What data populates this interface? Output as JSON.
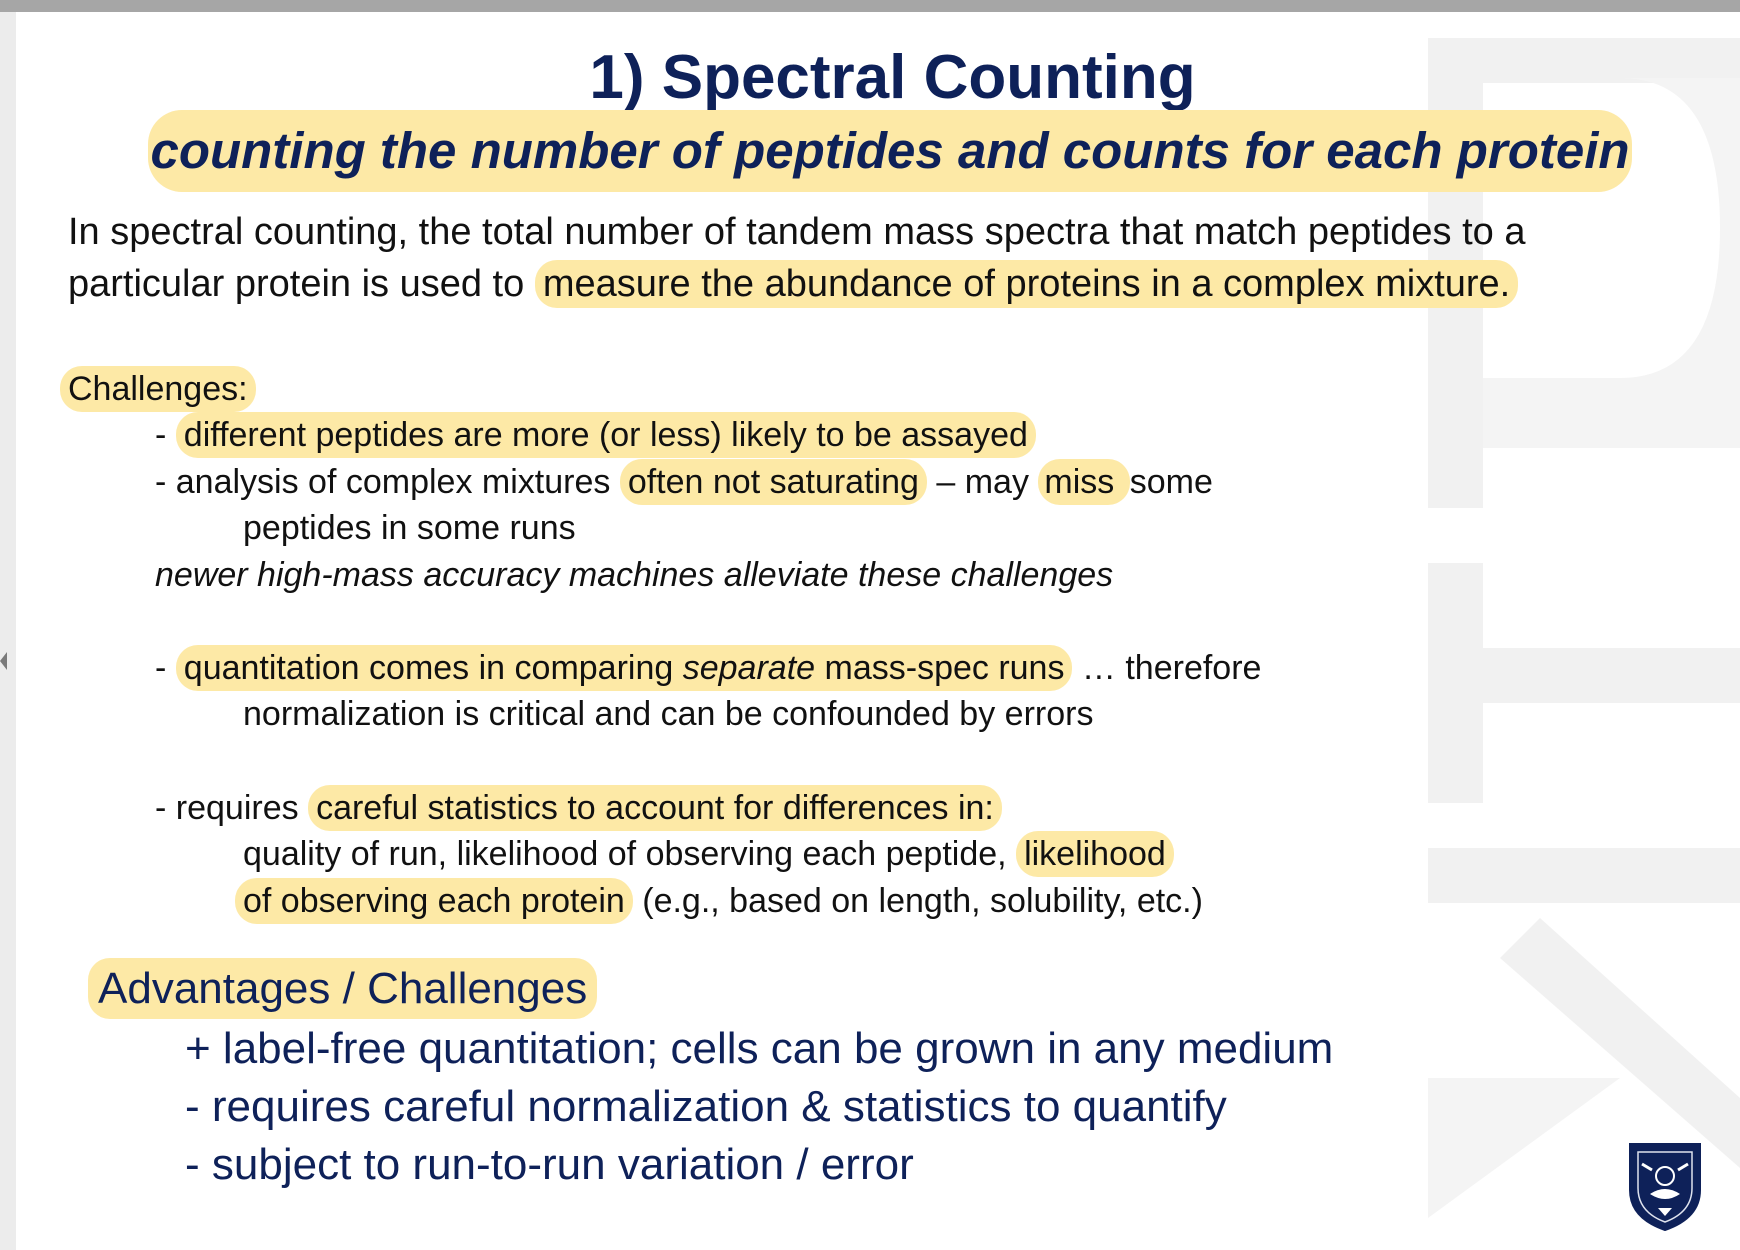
{
  "title": "1) Spectral Counting",
  "subtitle": "counting the number of peptides and counts for each protein",
  "intro": {
    "line1": "In spectral counting, the total number of tandem mass spectra that match peptides to a",
    "line2_plain": "particular protein is used to ",
    "line2_highlight": "measure the abundance of proteins in a complex mixture."
  },
  "challenges": {
    "heading": "Challenges:",
    "item1_dash": "- ",
    "item1_highlight": "different peptides are more (or less) likely to be assayed",
    "item2_plain_a": "- analysis of complex mixtures ",
    "item2_highlight_a": "often not saturating",
    "item2_plain_b": " – may ",
    "item2_highlight_b": "miss ",
    "item2_plain_c": "some",
    "item2_cont": "peptides in some runs",
    "note": "newer high-mass accuracy machines alleviate these challenges",
    "item3_dash": "- ",
    "item3_hl_a": "quantitation comes in comparing ",
    "item3_hl_italic": "separate",
    "item3_hl_b": " mass-spec runs",
    "item3_plain": " … therefore",
    "item3_cont": "normalization is critical and can be confounded by errors",
    "item4_plain": "- requires ",
    "item4_highlight": "careful statistics to account for differences in:",
    "item4_cont_plain": "quality of run, likelihood of observing each peptide, ",
    "item4_cont_highlight": "likelihood",
    "item4_cont2_highlight": "of observing each protein",
    "item4_cont2_plain": " (e.g., based on length, solubility, etc.)"
  },
  "advantages": {
    "heading": "Advantages / Challenges",
    "items": [
      "+ label-free quantitation;  cells can be grown in any medium",
      "- requires careful normalization & statistics to quantify",
      "- subject to run-to-run variation / error"
    ]
  },
  "colors": {
    "highlight": "#fde9a6",
    "navy": "#0e2159",
    "top_bar": "#a6a6a6"
  },
  "icons": {
    "logo": "university-crest-logo"
  }
}
